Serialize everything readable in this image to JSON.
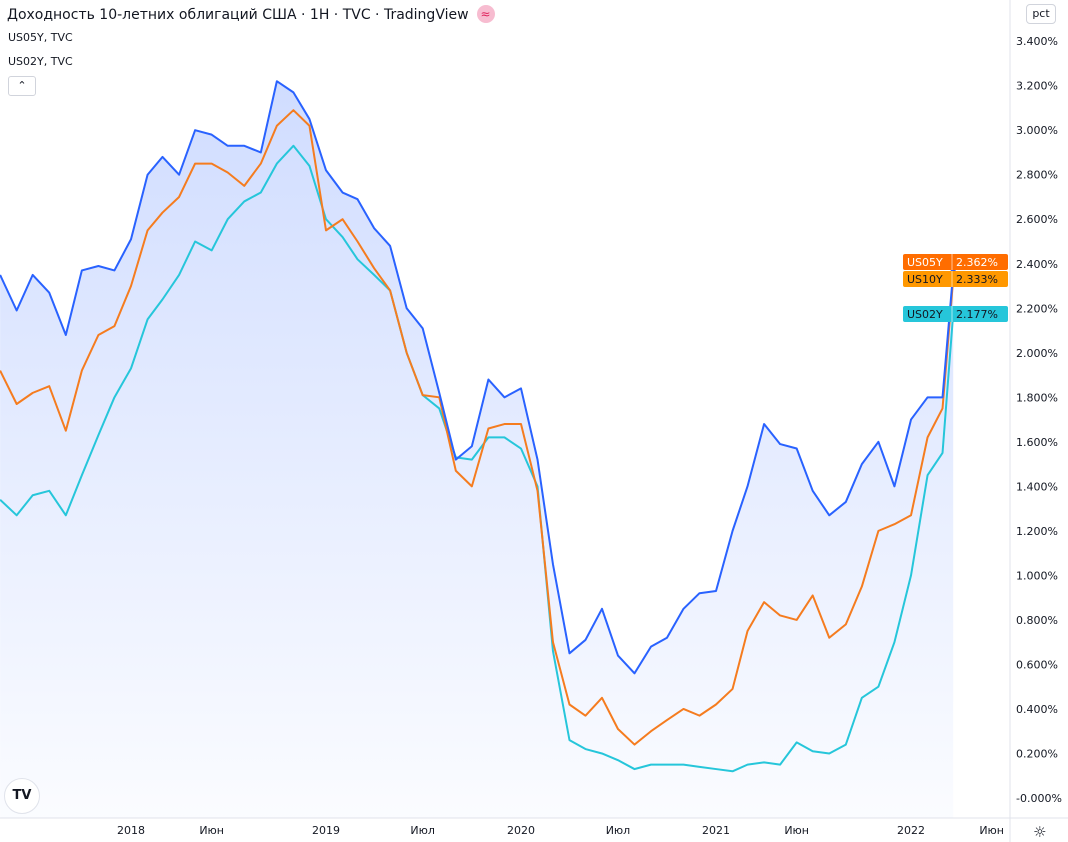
{
  "header": {
    "title": "Доходность 10-летних облигаций США · 1H · TVC · TradingView",
    "badge_icon": "approx-equal-icon",
    "legend": [
      "US05Y, TVC",
      "US02Y, TVC"
    ],
    "collapse_icon": "chevron-up-icon"
  },
  "scale_button": "pct",
  "settings_icon": "gear-icon",
  "logo_text": "TV",
  "chart_data": {
    "type": "line",
    "title": "Доходность 10-летних облигаций США",
    "x": [
      "2017-05-01",
      "2017-06-01",
      "2017-07-01",
      "2017-08-01",
      "2017-09-01",
      "2017-10-01",
      "2017-11-01",
      "2017-12-01",
      "2018-01-01",
      "2018-02-01",
      "2018-03-01",
      "2018-04-01",
      "2018-05-01",
      "2018-06-01",
      "2018-07-01",
      "2018-08-01",
      "2018-09-01",
      "2018-10-01",
      "2018-11-01",
      "2018-12-01",
      "2019-01-01",
      "2019-02-01",
      "2019-03-01",
      "2019-04-01",
      "2019-05-01",
      "2019-06-01",
      "2019-07-01",
      "2019-08-01",
      "2019-09-01",
      "2019-10-01",
      "2019-11-01",
      "2019-12-01",
      "2020-01-01",
      "2020-02-01",
      "2020-03-01",
      "2020-04-01",
      "2020-05-01",
      "2020-06-01",
      "2020-07-01",
      "2020-08-01",
      "2020-09-01",
      "2020-10-01",
      "2020-11-01",
      "2020-12-01",
      "2021-01-01",
      "2021-02-01",
      "2021-03-01",
      "2021-04-01",
      "2021-05-01",
      "2021-06-01",
      "2021-07-01",
      "2021-08-01",
      "2021-09-01",
      "2021-10-01",
      "2021-11-01",
      "2021-12-01",
      "2022-01-01",
      "2022-02-01",
      "2022-03-01",
      "2022-03-21"
    ],
    "series": [
      {
        "name": "US05Y",
        "color": "#2962ff",
        "fill": true,
        "last": "2.362%",
        "label_color": "#ff6d00",
        "values": [
          2.35,
          2.19,
          2.35,
          2.27,
          2.08,
          2.37,
          2.39,
          2.37,
          2.51,
          2.8,
          2.88,
          2.8,
          3.0,
          2.98,
          2.93,
          2.93,
          2.9,
          3.22,
          3.17,
          3.05,
          2.82,
          2.72,
          2.69,
          2.56,
          2.48,
          2.2,
          2.11,
          1.82,
          1.52,
          1.58,
          1.88,
          1.8,
          1.84,
          1.52,
          1.05,
          0.65,
          0.71,
          0.85,
          0.64,
          0.56,
          0.68,
          0.72,
          0.85,
          0.92,
          0.93,
          1.2,
          1.4,
          1.68,
          1.59,
          1.57,
          1.38,
          1.27,
          1.33,
          1.5,
          1.6,
          1.4,
          1.7,
          1.8,
          1.8,
          2.362
        ]
      },
      {
        "name": "US10Y",
        "color": "#f57c1f",
        "fill": false,
        "last": "2.333%",
        "label_color": "#ff9800",
        "values": [
          1.92,
          1.77,
          1.82,
          1.85,
          1.65,
          1.92,
          2.08,
          2.12,
          2.3,
          2.55,
          2.63,
          2.7,
          2.85,
          2.85,
          2.81,
          2.75,
          2.85,
          3.02,
          3.09,
          3.02,
          2.55,
          2.6,
          2.5,
          2.38,
          2.28,
          2.0,
          1.81,
          1.8,
          1.47,
          1.4,
          1.66,
          1.68,
          1.68,
          1.38,
          0.7,
          0.42,
          0.37,
          0.45,
          0.31,
          0.24,
          0.3,
          0.35,
          0.4,
          0.37,
          0.42,
          0.49,
          0.75,
          0.88,
          0.82,
          0.8,
          0.91,
          0.72,
          0.78,
          0.95,
          1.2,
          1.23,
          1.27,
          1.62,
          1.75,
          2.333
        ]
      },
      {
        "name": "US02Y",
        "color": "#26c6da",
        "fill": false,
        "last": "2.177%",
        "label_color": "#26c6da",
        "values": [
          1.34,
          1.27,
          1.36,
          1.38,
          1.27,
          1.45,
          1.63,
          1.8,
          1.93,
          2.15,
          2.24,
          2.35,
          2.5,
          2.46,
          2.6,
          2.68,
          2.72,
          2.85,
          2.93,
          2.84,
          2.6,
          2.52,
          2.42,
          2.35,
          2.28,
          2.0,
          1.81,
          1.75,
          1.53,
          1.52,
          1.62,
          1.62,
          1.57,
          1.4,
          0.66,
          0.26,
          0.22,
          0.2,
          0.17,
          0.13,
          0.15,
          0.15,
          0.15,
          0.14,
          0.13,
          0.12,
          0.15,
          0.16,
          0.15,
          0.25,
          0.21,
          0.2,
          0.24,
          0.45,
          0.5,
          0.7,
          1.0,
          1.45,
          1.55,
          2.177
        ]
      }
    ],
    "y_ticks": [
      {
        "v": 0,
        "label": "-0.000%"
      },
      {
        "v": 0.2,
        "label": "0.200%"
      },
      {
        "v": 0.4,
        "label": "0.400%"
      },
      {
        "v": 0.6,
        "label": "0.600%"
      },
      {
        "v": 0.8,
        "label": "0.800%"
      },
      {
        "v": 1.0,
        "label": "1.000%"
      },
      {
        "v": 1.2,
        "label": "1.200%"
      },
      {
        "v": 1.4,
        "label": "1.400%"
      },
      {
        "v": 1.6,
        "label": "1.600%"
      },
      {
        "v": 1.8,
        "label": "1.800%"
      },
      {
        "v": 2.0,
        "label": "2.000%"
      },
      {
        "v": 2.2,
        "label": "2.200%"
      },
      {
        "v": 2.4,
        "label": "2.400%"
      },
      {
        "v": 2.6,
        "label": "2.600%"
      },
      {
        "v": 2.8,
        "label": "2.800%"
      },
      {
        "v": 3.0,
        "label": "3.000%"
      },
      {
        "v": 3.2,
        "label": "3.200%"
      },
      {
        "v": 3.4,
        "label": "3.400%"
      }
    ],
    "x_ticks": [
      {
        "d": "2018-01-01",
        "label": "2018"
      },
      {
        "d": "2018-06-01",
        "label": "Июн"
      },
      {
        "d": "2019-01-01",
        "label": "2019"
      },
      {
        "d": "2019-07-01",
        "label": "Июл"
      },
      {
        "d": "2020-01-01",
        "label": "2020"
      },
      {
        "d": "2020-07-01",
        "label": "Июл"
      },
      {
        "d": "2021-01-01",
        "label": "2021"
      },
      {
        "d": "2021-06-01",
        "label": "Июн"
      },
      {
        "d": "2022-01-01",
        "label": "2022"
      },
      {
        "d": "2022-06-01",
        "label": "Июн"
      }
    ],
    "ylim": [
      -0.09,
      3.6
    ],
    "grid": false
  }
}
